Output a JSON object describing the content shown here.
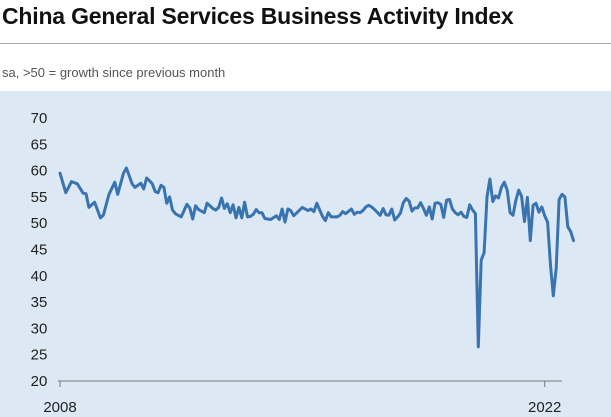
{
  "chart_data": {
    "type": "line",
    "title": "China General Services Business Activity Index",
    "subtitle": "sa, >50 = growth since previous month",
    "xlabel": "",
    "ylabel": "",
    "ylim": [
      20,
      70
    ],
    "yticks": [
      20,
      25,
      30,
      35,
      40,
      45,
      50,
      55,
      60,
      65,
      70
    ],
    "xlim": [
      "2008-01",
      "2022-07"
    ],
    "xtick_labels": [
      "2008",
      "2022"
    ],
    "grid": false,
    "legend": "none",
    "colors": {
      "line": "#3a74b0",
      "panel": "#dde8f5",
      "axis": "#777777"
    },
    "series": [
      {
        "name": "",
        "points": [
          [
            "2008-01",
            59.5
          ],
          [
            "2008-03",
            55.8
          ],
          [
            "2008-05",
            57.9
          ],
          [
            "2008-07",
            57.5
          ],
          [
            "2008-09",
            55.7
          ],
          [
            "2008-10",
            55.6
          ],
          [
            "2008-11",
            53.0
          ],
          [
            "2009-01",
            54.0
          ],
          [
            "2009-03",
            51.0
          ],
          [
            "2009-04",
            51.5
          ],
          [
            "2009-06",
            55.5
          ],
          [
            "2009-08",
            57.8
          ],
          [
            "2009-09",
            55.5
          ],
          [
            "2009-11",
            59.5
          ],
          [
            "2009-12",
            60.5
          ],
          [
            "2010-02",
            57.5
          ],
          [
            "2010-03",
            56.8
          ],
          [
            "2010-05",
            57.6
          ],
          [
            "2010-06",
            56.5
          ],
          [
            "2010-07",
            58.6
          ],
          [
            "2010-08",
            58.1
          ],
          [
            "2010-09",
            57.5
          ],
          [
            "2010-10",
            56.0
          ],
          [
            "2010-11",
            55.8
          ],
          [
            "2010-12",
            57.2
          ],
          [
            "2011-01",
            56.8
          ],
          [
            "2011-02",
            53.8
          ],
          [
            "2011-03",
            55.0
          ],
          [
            "2011-04",
            52.5
          ],
          [
            "2011-05",
            51.8
          ],
          [
            "2011-06",
            51.5
          ],
          [
            "2011-07",
            51.2
          ],
          [
            "2011-09",
            53.6
          ],
          [
            "2011-10",
            52.9
          ],
          [
            "2011-11",
            50.8
          ],
          [
            "2011-12",
            53.3
          ],
          [
            "2012-01",
            52.6
          ],
          [
            "2012-03",
            52.0
          ],
          [
            "2012-04",
            53.8
          ],
          [
            "2012-06",
            52.8
          ],
          [
            "2012-07",
            52.5
          ],
          [
            "2012-08",
            53.0
          ],
          [
            "2012-09",
            54.8
          ],
          [
            "2012-10",
            52.8
          ],
          [
            "2012-11",
            53.7
          ],
          [
            "2012-12",
            52.0
          ],
          [
            "2013-01",
            53.5
          ],
          [
            "2013-02",
            51.0
          ],
          [
            "2013-03",
            53.0
          ],
          [
            "2013-04",
            51.0
          ],
          [
            "2013-05",
            54.0
          ],
          [
            "2013-06",
            51.2
          ],
          [
            "2013-07",
            51.3
          ],
          [
            "2013-08",
            51.7
          ],
          [
            "2013-09",
            52.6
          ],
          [
            "2013-10",
            52.0
          ],
          [
            "2013-11",
            52.0
          ],
          [
            "2013-12",
            50.9
          ],
          [
            "2014-02",
            50.7
          ],
          [
            "2014-04",
            51.4
          ],
          [
            "2014-05",
            50.7
          ],
          [
            "2014-06",
            52.7
          ],
          [
            "2014-07",
            50.2
          ],
          [
            "2014-08",
            52.7
          ],
          [
            "2014-09",
            52.4
          ],
          [
            "2014-10",
            51.4
          ],
          [
            "2015-01",
            53.0
          ],
          [
            "2015-03",
            52.4
          ],
          [
            "2015-04",
            52.7
          ],
          [
            "2015-05",
            52.2
          ],
          [
            "2015-06",
            53.8
          ],
          [
            "2015-07",
            52.5
          ],
          [
            "2015-08",
            51.3
          ],
          [
            "2015-09",
            50.5
          ],
          [
            "2015-10",
            52.0
          ],
          [
            "2015-11",
            51.2
          ],
          [
            "2016-01",
            51.2
          ],
          [
            "2016-02",
            51.5
          ],
          [
            "2016-03",
            52.2
          ],
          [
            "2016-04",
            51.8
          ],
          [
            "2016-06",
            52.7
          ],
          [
            "2016-07",
            51.7
          ],
          [
            "2016-08",
            52.1
          ],
          [
            "2016-09",
            52.0
          ],
          [
            "2016-10",
            52.4
          ],
          [
            "2016-11",
            53.1
          ],
          [
            "2016-12",
            53.4
          ],
          [
            "2017-01",
            53.1
          ],
          [
            "2017-02",
            52.6
          ],
          [
            "2017-04",
            51.5
          ],
          [
            "2017-05",
            52.8
          ],
          [
            "2017-06",
            51.6
          ],
          [
            "2017-07",
            51.5
          ],
          [
            "2017-08",
            52.7
          ],
          [
            "2017-09",
            50.6
          ],
          [
            "2017-10",
            51.2
          ],
          [
            "2017-11",
            51.9
          ],
          [
            "2017-12",
            53.9
          ],
          [
            "2018-01",
            54.7
          ],
          [
            "2018-02",
            54.2
          ],
          [
            "2018-03",
            52.3
          ],
          [
            "2018-04",
            52.9
          ],
          [
            "2018-05",
            52.9
          ],
          [
            "2018-06",
            53.9
          ],
          [
            "2018-07",
            52.8
          ],
          [
            "2018-08",
            51.5
          ],
          [
            "2018-09",
            53.1
          ],
          [
            "2018-10",
            50.8
          ],
          [
            "2018-11",
            53.8
          ],
          [
            "2018-12",
            53.9
          ],
          [
            "2019-01",
            53.6
          ],
          [
            "2019-02",
            51.1
          ],
          [
            "2019-03",
            54.4
          ],
          [
            "2019-04",
            54.5
          ],
          [
            "2019-05",
            52.7
          ],
          [
            "2019-06",
            52.0
          ],
          [
            "2019-07",
            51.6
          ],
          [
            "2019-08",
            52.1
          ],
          [
            "2019-09",
            51.3
          ],
          [
            "2019-10",
            51.1
          ],
          [
            "2019-11",
            53.5
          ],
          [
            "2019-12",
            52.5
          ],
          [
            "2020-01",
            51.8
          ],
          [
            "2020-02",
            26.5
          ],
          [
            "2020-03",
            43.0
          ],
          [
            "2020-04",
            44.4
          ],
          [
            "2020-05",
            55.0
          ],
          [
            "2020-06",
            58.4
          ],
          [
            "2020-07",
            54.1
          ],
          [
            "2020-08",
            55.2
          ],
          [
            "2020-09",
            54.8
          ],
          [
            "2020-10",
            56.8
          ],
          [
            "2020-11",
            57.8
          ],
          [
            "2020-12",
            56.3
          ],
          [
            "2021-01",
            52.0
          ],
          [
            "2021-02",
            51.5
          ],
          [
            "2021-03",
            54.3
          ],
          [
            "2021-04",
            56.3
          ],
          [
            "2021-05",
            55.1
          ],
          [
            "2021-06",
            50.3
          ],
          [
            "2021-07",
            54.9
          ],
          [
            "2021-08",
            46.7
          ],
          [
            "2021-09",
            53.4
          ],
          [
            "2021-10",
            53.8
          ],
          [
            "2021-11",
            52.1
          ],
          [
            "2021-12",
            53.1
          ],
          [
            "2022-01",
            51.4
          ],
          [
            "2022-02",
            50.2
          ],
          [
            "2022-03",
            42.0
          ],
          [
            "2022-04",
            36.2
          ],
          [
            "2022-05",
            41.4
          ],
          [
            "2022-06",
            54.5
          ],
          [
            "2022-07",
            55.5
          ],
          [
            "2022-08",
            55.0
          ],
          [
            "2022-09",
            49.3
          ],
          [
            "2022-10",
            48.4
          ],
          [
            "2022-11",
            46.7
          ]
        ]
      }
    ]
  }
}
